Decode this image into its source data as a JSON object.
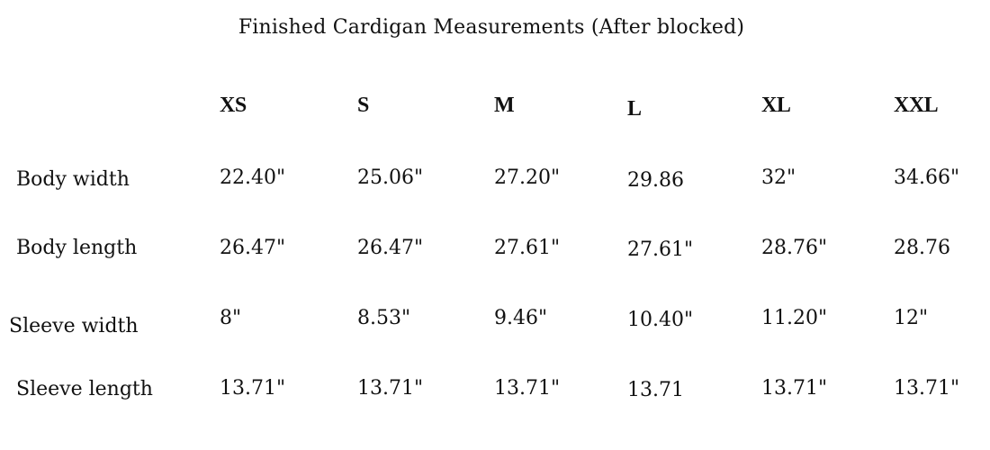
{
  "title": "Finished Cardigan Measurements (After blocked)",
  "sizes": [
    "XS",
    "S",
    "M",
    "L",
    "XL",
    "XXL"
  ],
  "rows": [
    {
      "label": "Body width",
      "values": [
        "22.40\"",
        "25.06\"",
        "27.20\"",
        "29.86",
        "32\"",
        "34.66\""
      ]
    },
    {
      "label": "Body length",
      "values": [
        "26.47\"",
        "26.47\"",
        "27.61\"",
        "27.61\"",
        "28.76\"",
        "28.76"
      ]
    },
    {
      "label": "Sleeve width",
      "values": [
        "8\"",
        "8.53\"",
        "9.46\"",
        "10.40\"",
        "11.20\"",
        "12\""
      ]
    },
    {
      "label": "Sleeve length",
      "values": [
        "13.71\"",
        "13.71\"",
        "13.71\"",
        "13.71",
        "13.71\"",
        "13.71\""
      ]
    }
  ]
}
